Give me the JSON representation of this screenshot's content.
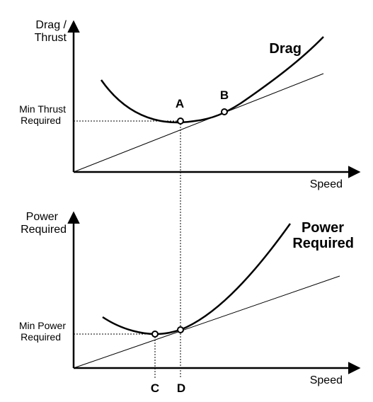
{
  "top_graph": {
    "y_axis_label_line1": "Drag /",
    "y_axis_label_line2": "Thrust",
    "x_axis_label": "Speed",
    "curve_label": "Drag",
    "level_label_line1": "Min Thrust",
    "level_label_line2": "Required",
    "point_a": "A",
    "point_b": "B"
  },
  "bottom_graph": {
    "y_axis_label_line1": "Power",
    "y_axis_label_line2": "Required",
    "x_axis_label": "Speed",
    "curve_label_line1": "Power",
    "curve_label_line2": "Required",
    "level_label_line1": "Min Power",
    "level_label_line2": "Required",
    "point_c": "C",
    "point_d": "D"
  },
  "colors": {
    "line": "#000000",
    "background": "#ffffff"
  }
}
